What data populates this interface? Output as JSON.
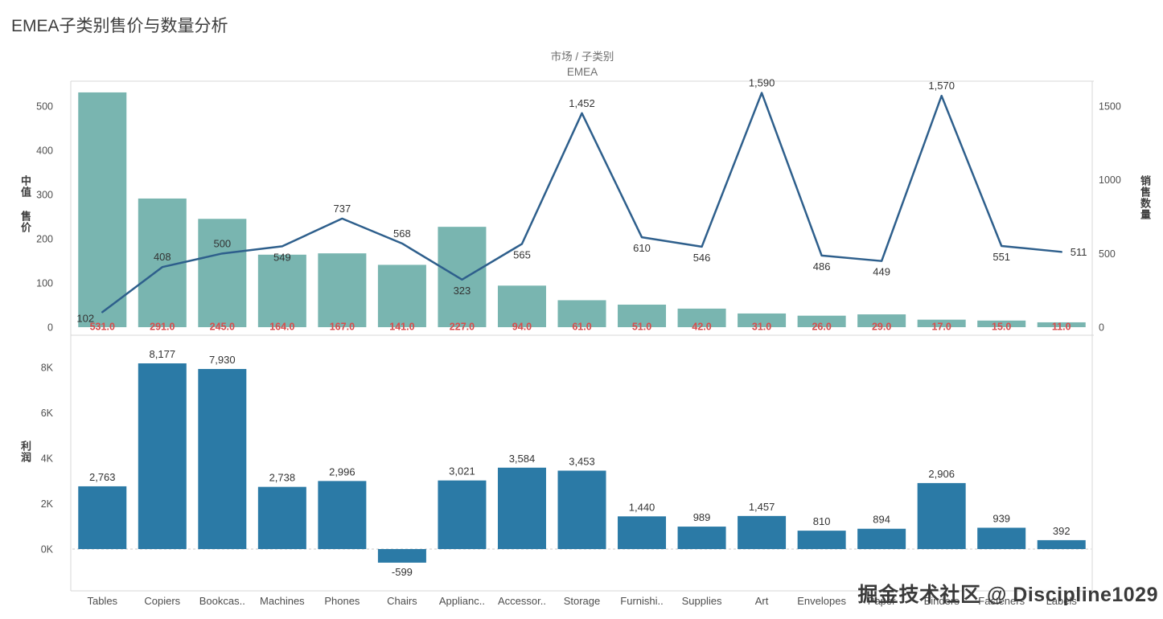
{
  "title": "EMEA子类别售价与数量分析",
  "column_header": {
    "field": "市场 / 子类别",
    "value": "EMEA"
  },
  "watermark": "掘金技术社区 @ Discipline1029",
  "colors": {
    "teal_bar": "#79b5b0",
    "line": "#2e5f8c",
    "blue_bar": "#2b7aa6",
    "bar_label_red": "#d94c4c",
    "label_dark": "#333333",
    "axis_text": "#4e4e4e",
    "grid": "#d7d7d7",
    "zero_dash": "#c9c9c9"
  },
  "categories": [
    "Tables",
    "Copiers",
    "Bookcas..",
    "Machines",
    "Phones",
    "Chairs",
    "Applianc..",
    "Accessor..",
    "Storage",
    "Furnishi..",
    "Supplies",
    "Art",
    "Envelopes",
    "Paper",
    "Binders",
    "Fasteners",
    "Labels"
  ],
  "chart_data": [
    {
      "type": "bar",
      "panel": "top",
      "categories": [
        "Tables",
        "Copiers",
        "Bookcas..",
        "Machines",
        "Phones",
        "Chairs",
        "Applianc..",
        "Accessor..",
        "Storage",
        "Furnishi..",
        "Supplies",
        "Art",
        "Envelopes",
        "Paper",
        "Binders",
        "Fasteners",
        "Labels"
      ],
      "series": [
        {
          "name": "中值 售价",
          "mark": "bar",
          "axis": "left",
          "values": [
            531.0,
            291.0,
            245.0,
            164.0,
            167.0,
            141.0,
            227.0,
            94.0,
            61.0,
            51.0,
            42.0,
            31.0,
            26.0,
            29.0,
            17.0,
            15.0,
            11.0
          ],
          "labels": [
            "531.0",
            "291.0",
            "245.0",
            "164.0",
            "167.0",
            "141.0",
            "227.0",
            "94.0",
            "61.0",
            "51.0",
            "42.0",
            "31.0",
            "26.0",
            "29.0",
            "17.0",
            "15.0",
            "11.0"
          ]
        },
        {
          "name": "销售数量",
          "mark": "line",
          "axis": "right",
          "values": [
            102,
            408,
            500,
            549,
            737,
            568,
            323,
            565,
            1452,
            610,
            546,
            1590,
            486,
            449,
            1570,
            551,
            511
          ],
          "labels": [
            "102",
            "408",
            "500",
            "549",
            "737",
            "568",
            "323",
            "565",
            "1,452",
            "610",
            "546",
            "1,590",
            "486",
            "449",
            "1,570",
            "551",
            "511"
          ],
          "label_positions": [
            "below-left",
            "above",
            "above",
            "below",
            "above",
            "above",
            "below",
            "below",
            "above",
            "below",
            "below",
            "above",
            "below",
            "below",
            "above",
            "below",
            "right"
          ]
        }
      ],
      "left_axis": {
        "title": "中值 售价",
        "ticks": [
          0,
          100,
          200,
          300,
          400,
          500
        ],
        "range": [
          0,
          540
        ]
      },
      "right_axis": {
        "title": "销售数量",
        "ticks": [
          0,
          500,
          1000,
          1500
        ],
        "range": [
          0,
          1650
        ]
      },
      "grid": "off"
    },
    {
      "type": "bar",
      "panel": "bottom",
      "categories": [
        "Tables",
        "Copiers",
        "Bookcas..",
        "Machines",
        "Phones",
        "Chairs",
        "Applianc..",
        "Accessor..",
        "Storage",
        "Furnishi..",
        "Supplies",
        "Art",
        "Envelopes",
        "Paper",
        "Binders",
        "Fasteners",
        "Labels"
      ],
      "series": [
        {
          "name": "利润",
          "mark": "bar",
          "values": [
            2763,
            8177,
            7930,
            2738,
            2996,
            -599,
            3021,
            3584,
            3453,
            1440,
            989,
            1457,
            810,
            894,
            2906,
            939,
            392
          ],
          "labels": [
            "2,763",
            "8,177",
            "7,930",
            "2,738",
            "2,996",
            "-599",
            "3,021",
            "3,584",
            "3,453",
            "1,440",
            "989",
            "1,457",
            "810",
            "894",
            "2,906",
            "939",
            "392"
          ]
        }
      ],
      "left_axis": {
        "title": "利润",
        "ticks": [
          0,
          2000,
          4000,
          6000,
          8000
        ],
        "tick_labels": [
          "0K",
          "2K",
          "4K",
          "6K",
          "8K"
        ],
        "range": [
          -900,
          8700
        ]
      },
      "grid": "zero-line-dashed"
    }
  ]
}
